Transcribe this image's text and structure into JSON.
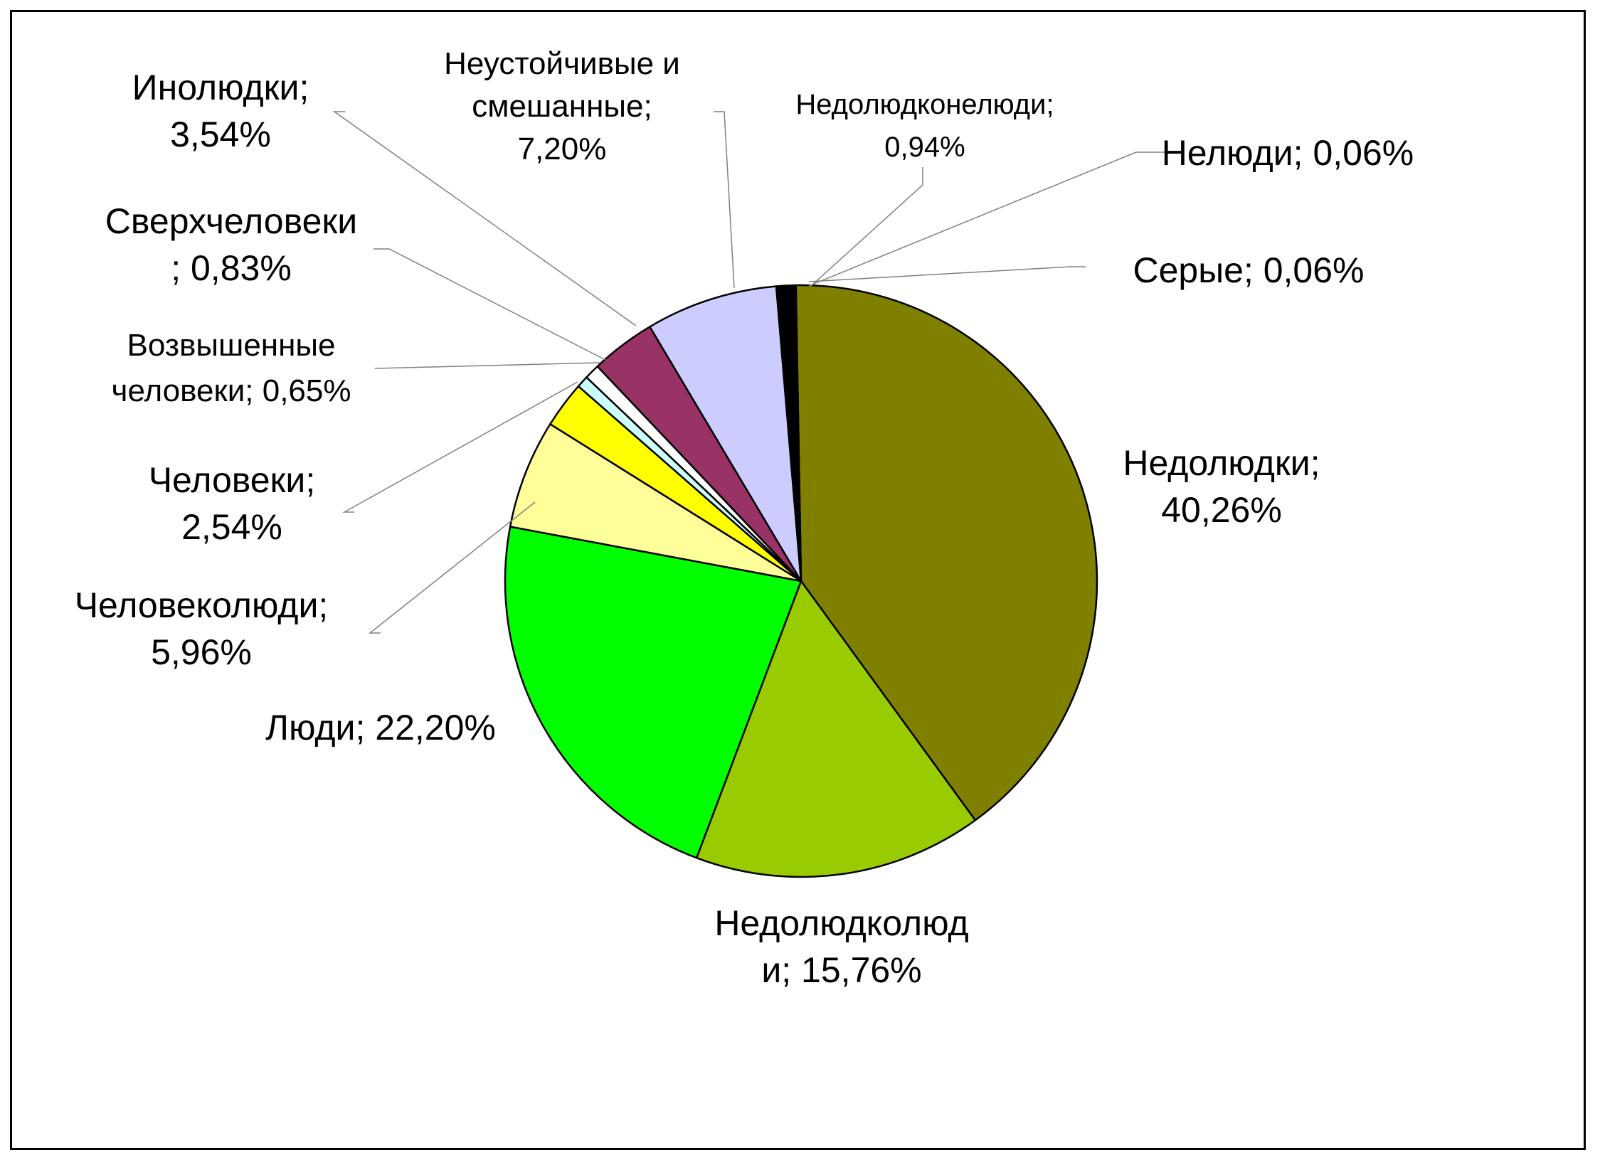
{
  "chart_data": {
    "type": "pie",
    "title": "",
    "slices": [
      {
        "name": "Недолюдки",
        "label_lines": [
          "Недолюдки;",
          "40,26%"
        ],
        "value": 40.26,
        "color": "#808000"
      },
      {
        "name": "Недолюдколюди",
        "label_lines": [
          "Недолюдколюд",
          "и; 15,76%"
        ],
        "value": 15.76,
        "color": "#99CC00"
      },
      {
        "name": "Люди",
        "label_lines": [
          "Люди; 22,20%"
        ],
        "value": 22.2,
        "color": "#00FF00"
      },
      {
        "name": "Человеколюди",
        "label_lines": [
          "Человеколюди;",
          "5,96%"
        ],
        "value": 5.96,
        "color": "#FFFF99"
      },
      {
        "name": "Человеки",
        "label_lines": [
          "Человеки;",
          "2,54%"
        ],
        "value": 2.54,
        "color": "#FFFF00"
      },
      {
        "name": "Возвышенные человеки",
        "label_lines": [
          "Возвышенные",
          "человеки; 0,65%"
        ],
        "value": 0.65,
        "color": "#CCFFFF"
      },
      {
        "name": "Сверхчеловеки",
        "label_lines": [
          "Сверхчеловеки",
          "; 0,83%"
        ],
        "value": 0.83,
        "color": "#FFFFFF"
      },
      {
        "name": "Инолюдки",
        "label_lines": [
          "Инолюдки;",
          "3,54%"
        ],
        "value": 3.54,
        "color": "#993366"
      },
      {
        "name": "Неустойчивые и смешанные",
        "label_lines": [
          "Неустойчивые и",
          "смешанные;",
          "7,20%"
        ],
        "value": 7.2,
        "color": "#CCCCFF"
      },
      {
        "name": "Недолюдконелюди",
        "label_lines": [
          "Недолюдконелюди;",
          "0,94%"
        ],
        "value": 0.94,
        "color": "#000000"
      },
      {
        "name": "Нелюди",
        "label_lines": [
          "Нелюди; 0,06%"
        ],
        "value": 0.06,
        "color": "#333333"
      },
      {
        "name": "Серые",
        "label_lines": [
          "Серые; 0,06%"
        ],
        "value": 0.06,
        "color": "#808080"
      }
    ],
    "legend": "none"
  }
}
